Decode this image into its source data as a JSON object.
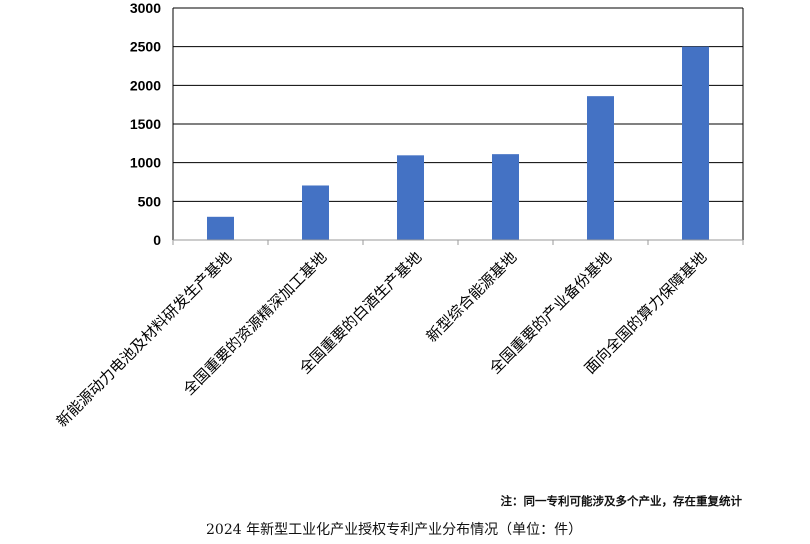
{
  "chart_data": {
    "type": "bar",
    "categories": [
      "新能源动力电池及材料研发生产基地",
      "全国重要的资源精深加工基地",
      "全国重要的白酒生产基地",
      "新型综合能源基地",
      "全国重要的产业备份基地",
      "面向全国的算力保障基地"
    ],
    "values": [
      300,
      705,
      1095,
      1110,
      1860,
      2500
    ],
    "yticks": [
      "0",
      "500",
      "1000",
      "1500",
      "2000",
      "2500",
      "3000"
    ],
    "ylim": [
      0,
      3000
    ],
    "bar_color": "#4472C4",
    "grid": true,
    "title": "",
    "xlabel": "",
    "ylabel": ""
  },
  "note": "注：同一专利可能涉及多个产业，存在重复统计",
  "caption": "2024 年新型工业化产业授权专利产业分布情况（单位：件）"
}
